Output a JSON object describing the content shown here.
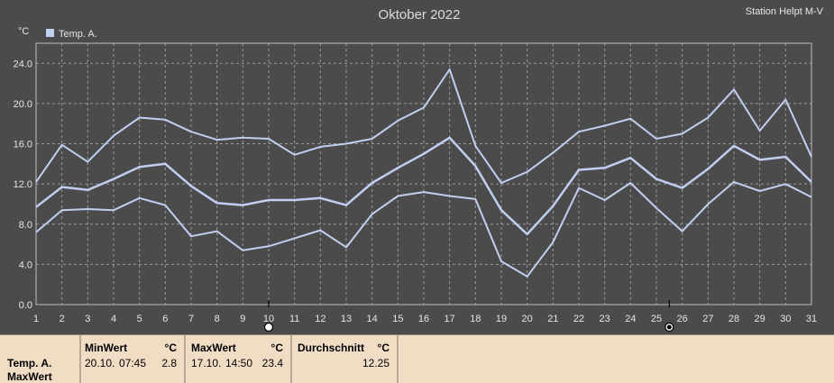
{
  "header": {
    "title": "Oktober 2022",
    "station": "Station Helpt M-V",
    "unit": "°C",
    "legend_label": "Temp. A."
  },
  "colors": {
    "background": "#4b4b4b",
    "plot_background": "#4b4b4b",
    "grid": "#9a9a9a",
    "axis": "#bdbdbd",
    "series": "#c0cef0",
    "text": "#e6e6e6",
    "panel": "#f1dcc4"
  },
  "chart_data": {
    "type": "line",
    "title": "Oktober 2022",
    "ylabel": "°C",
    "xlabel": "",
    "x": [
      1,
      2,
      3,
      4,
      5,
      6,
      7,
      8,
      9,
      10,
      11,
      12,
      13,
      14,
      15,
      16,
      17,
      18,
      19,
      20,
      21,
      22,
      23,
      24,
      25,
      26,
      27,
      28,
      29,
      30,
      31
    ],
    "xlim": [
      1,
      31
    ],
    "ylim": [
      0,
      26
    ],
    "yticks": [
      "0.0",
      "4.0",
      "8.0",
      "12.0",
      "16.0",
      "20.0",
      "24.0"
    ],
    "ytick_values": [
      0,
      4,
      8,
      12,
      16,
      20,
      24
    ],
    "grid": true,
    "legend": "top-left",
    "series": [
      {
        "name": "Temp. A.",
        "role": "max",
        "values": [
          12.2,
          15.9,
          14.2,
          16.8,
          18.6,
          18.4,
          17.2,
          16.4,
          16.6,
          16.5,
          14.9,
          15.7,
          16.0,
          16.5,
          18.3,
          19.6,
          23.4,
          15.8,
          12.1,
          13.2,
          15.1,
          17.2,
          17.8,
          18.5,
          16.5,
          17.0,
          18.6,
          21.4,
          17.3,
          20.4,
          14.7
        ]
      },
      {
        "name": "",
        "role": "mean",
        "values": [
          9.7,
          11.7,
          11.4,
          12.5,
          13.7,
          14.0,
          11.8,
          10.1,
          9.9,
          10.4,
          10.4,
          10.6,
          9.9,
          12.1,
          13.6,
          15.0,
          16.6,
          13.8,
          9.4,
          7.0,
          9.8,
          13.4,
          13.6,
          14.6,
          12.5,
          11.6,
          13.5,
          15.8,
          14.4,
          14.7,
          12.2
        ]
      },
      {
        "name": "",
        "role": "min",
        "values": [
          7.2,
          9.4,
          9.5,
          9.4,
          10.6,
          9.9,
          6.8,
          7.3,
          5.4,
          5.8,
          6.6,
          7.4,
          5.7,
          9.0,
          10.8,
          11.2,
          10.8,
          10.5,
          4.3,
          2.8,
          6.2,
          11.6,
          10.4,
          12.1,
          9.6,
          7.3,
          10.0,
          12.2,
          11.3,
          12.0,
          10.7
        ]
      }
    ],
    "markers": [
      {
        "x": 10,
        "symbol": "open-circle"
      },
      {
        "x": 25.5,
        "symbol": "filled-circle"
      }
    ]
  },
  "summary": {
    "row_label": "Temp. A.",
    "row_sublabel": "MaxWert",
    "min": {
      "header": "MinWert",
      "unit": "°C",
      "date": "20.10.",
      "time": "07:45",
      "value": "2.8"
    },
    "max": {
      "header": "MaxWert",
      "unit": "°C",
      "date": "17.10.",
      "time": "14:50",
      "value": "23.4"
    },
    "avg": {
      "header": "Durchschnitt",
      "unit": "°C",
      "value": "12.25"
    }
  }
}
